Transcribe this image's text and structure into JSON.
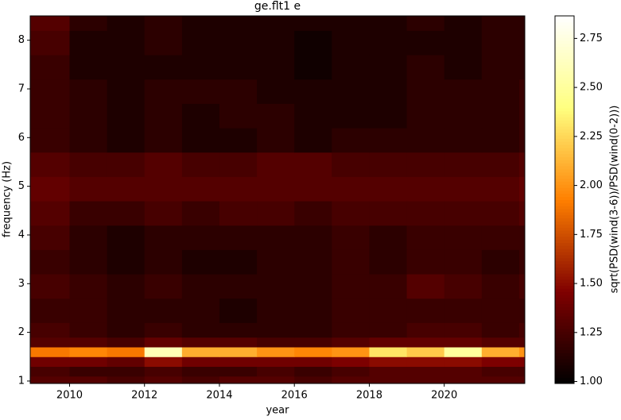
{
  "chart_data": {
    "type": "heatmap",
    "title": "ge.flt1 e",
    "x_label": "year",
    "y_label": "frequency (Hz)",
    "colorbar_label": "sqrt(PSD(wind(3-6))/PSD(wind(0-2)))",
    "colormap": "afmhot",
    "xlim": [
      2008.95,
      2022.15
    ],
    "ylim": [
      0.95,
      8.5
    ],
    "xticks": [
      2010,
      2012,
      2014,
      2016,
      2018,
      2020
    ],
    "yticks": [
      1,
      2,
      3,
      4,
      5,
      6,
      7,
      8
    ],
    "clim": [
      0.99,
      2.865
    ],
    "cticks": [
      {
        "value": 1,
        "label": "1.00"
      },
      {
        "value": 1.25,
        "label": "1.25"
      },
      {
        "value": 1.5,
        "label": "1.50"
      },
      {
        "value": 1.75,
        "label": "1.75"
      },
      {
        "value": 2,
        "label": "2.00"
      },
      {
        "value": 2.25,
        "label": "2.25"
      },
      {
        "value": 2.5,
        "label": "2.50"
      },
      {
        "value": 2.75,
        "label": "2.75"
      }
    ],
    "x_bins": [
      2008.95,
      2010,
      2011,
      2012,
      2013,
      2014,
      2015,
      2016,
      2017,
      2018,
      2019,
      2020,
      2021,
      2022,
      2022.15
    ],
    "y_bins": [
      0.95,
      1.1,
      1.3,
      1.5,
      1.7,
      1.9,
      2.2,
      2.7,
      3.2,
      3.7,
      4.2,
      4.7,
      5.2,
      5.7,
      6.2,
      6.7,
      7.2,
      7.7,
      8.2,
      8.5
    ],
    "z": [
      [
        1.3,
        1.3,
        1.25,
        1.3,
        1.25,
        1.3,
        1.3,
        1.25,
        1.3,
        1.3,
        1.3,
        1.3,
        1.3,
        1.3
      ],
      [
        1.25,
        1.2,
        1.2,
        1.25,
        1.2,
        1.2,
        1.25,
        1.2,
        1.25,
        1.3,
        1.3,
        1.3,
        1.25,
        1.25
      ],
      [
        1.4,
        1.4,
        1.35,
        1.5,
        1.4,
        1.4,
        1.4,
        1.4,
        1.45,
        1.5,
        1.5,
        1.5,
        1.45,
        1.45
      ],
      [
        1.9,
        1.95,
        1.9,
        2.6,
        2.1,
        2.1,
        2.0,
        1.95,
        2.0,
        2.3,
        2.2,
        2.5,
        2.1,
        2.0
      ],
      [
        1.3,
        1.3,
        1.25,
        1.35,
        1.3,
        1.3,
        1.25,
        1.25,
        1.3,
        1.35,
        1.35,
        1.35,
        1.3,
        1.3
      ],
      [
        1.25,
        1.2,
        1.15,
        1.2,
        1.15,
        1.15,
        1.15,
        1.15,
        1.2,
        1.2,
        1.25,
        1.25,
        1.2,
        1.25
      ],
      [
        1.2,
        1.2,
        1.15,
        1.15,
        1.15,
        1.1,
        1.15,
        1.15,
        1.2,
        1.2,
        1.2,
        1.2,
        1.2,
        1.2
      ],
      [
        1.25,
        1.2,
        1.15,
        1.2,
        1.15,
        1.15,
        1.15,
        1.15,
        1.2,
        1.2,
        1.3,
        1.25,
        1.2,
        1.25
      ],
      [
        1.2,
        1.15,
        1.1,
        1.15,
        1.1,
        1.1,
        1.15,
        1.15,
        1.2,
        1.15,
        1.2,
        1.2,
        1.15,
        1.2
      ],
      [
        1.25,
        1.15,
        1.1,
        1.15,
        1.15,
        1.15,
        1.15,
        1.15,
        1.2,
        1.15,
        1.2,
        1.2,
        1.2,
        1.2
      ],
      [
        1.3,
        1.2,
        1.2,
        1.25,
        1.2,
        1.25,
        1.25,
        1.2,
        1.25,
        1.25,
        1.25,
        1.25,
        1.25,
        1.3
      ],
      [
        1.35,
        1.3,
        1.3,
        1.3,
        1.3,
        1.3,
        1.3,
        1.3,
        1.3,
        1.3,
        1.3,
        1.3,
        1.3,
        1.35
      ],
      [
        1.3,
        1.25,
        1.25,
        1.3,
        1.25,
        1.25,
        1.3,
        1.3,
        1.25,
        1.25,
        1.25,
        1.25,
        1.25,
        1.3
      ],
      [
        1.2,
        1.15,
        1.1,
        1.15,
        1.1,
        1.1,
        1.15,
        1.1,
        1.15,
        1.15,
        1.15,
        1.15,
        1.15,
        1.2
      ],
      [
        1.2,
        1.15,
        1.1,
        1.15,
        1.1,
        1.15,
        1.15,
        1.1,
        1.1,
        1.1,
        1.15,
        1.15,
        1.15,
        1.2
      ],
      [
        1.2,
        1.15,
        1.1,
        1.15,
        1.15,
        1.15,
        1.1,
        1.1,
        1.1,
        1.1,
        1.15,
        1.15,
        1.15,
        1.2
      ],
      [
        1.2,
        1.1,
        1.1,
        1.1,
        1.1,
        1.1,
        1.1,
        1.05,
        1.1,
        1.1,
        1.15,
        1.1,
        1.15,
        1.15
      ],
      [
        1.25,
        1.1,
        1.1,
        1.15,
        1.1,
        1.1,
        1.1,
        1.05,
        1.1,
        1.1,
        1.1,
        1.1,
        1.15,
        1.15
      ],
      [
        1.3,
        1.15,
        1.1,
        1.15,
        1.1,
        1.1,
        1.1,
        1.1,
        1.1,
        1.1,
        1.15,
        1.1,
        1.15,
        1.15
      ]
    ]
  }
}
